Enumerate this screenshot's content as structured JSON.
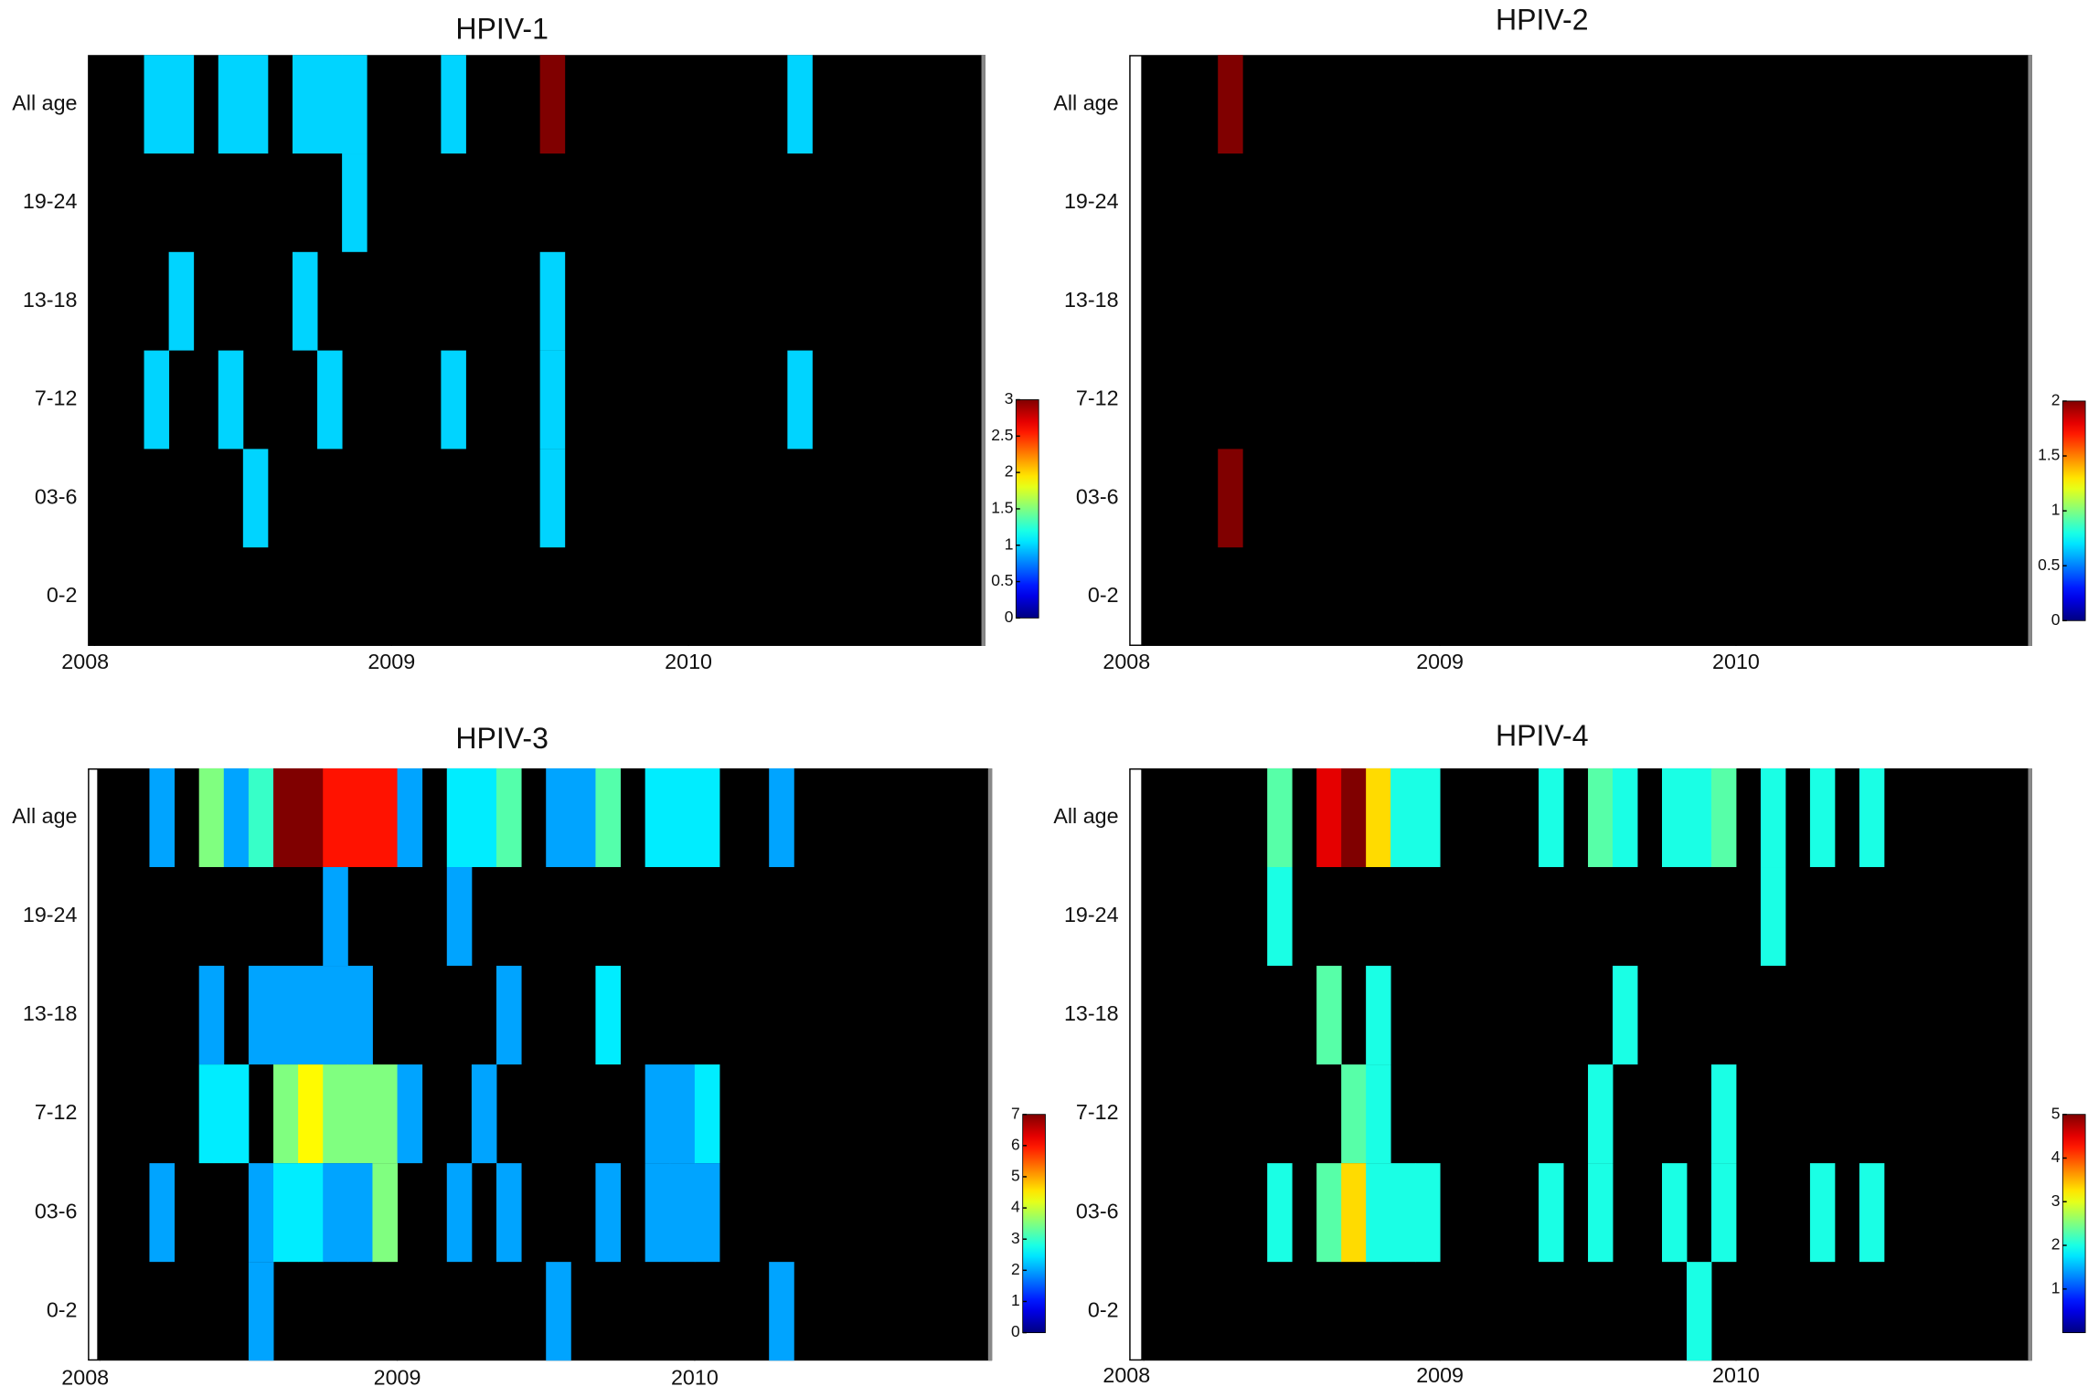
{
  "chart_data": [
    {
      "type": "heatmap",
      "title": "HPIV-1",
      "y_categories": [
        "All age",
        "19-24",
        "13-18",
        "7-12",
        "03-6",
        "0-2"
      ],
      "xlim": [
        2008,
        2011
      ],
      "xticks": [
        2008,
        2009,
        2010
      ],
      "colormap": "jet",
      "clim": [
        0,
        3
      ],
      "cticks": [
        0,
        0.5,
        1,
        1.5,
        2,
        2.5,
        3
      ],
      "z": [
        [
          null,
          null,
          1,
          1,
          null,
          1,
          1,
          null,
          1,
          1,
          1,
          null,
          null,
          null,
          1,
          null,
          null,
          null,
          3,
          null,
          null,
          null,
          null,
          null,
          null,
          null,
          null,
          null,
          1,
          null,
          null,
          null,
          null,
          null,
          null,
          null
        ],
        [
          null,
          null,
          null,
          null,
          null,
          null,
          null,
          null,
          null,
          null,
          1,
          null,
          null,
          null,
          null,
          null,
          null,
          null,
          null,
          null,
          null,
          null,
          null,
          null,
          null,
          null,
          null,
          null,
          null,
          null,
          null,
          null,
          null,
          null,
          null,
          null
        ],
        [
          null,
          null,
          null,
          1,
          null,
          null,
          null,
          null,
          1,
          null,
          null,
          null,
          null,
          null,
          null,
          null,
          null,
          null,
          1,
          null,
          null,
          null,
          null,
          null,
          null,
          null,
          null,
          null,
          null,
          null,
          null,
          null,
          null,
          null,
          null,
          null
        ],
        [
          null,
          null,
          1,
          null,
          null,
          1,
          null,
          null,
          null,
          1,
          null,
          null,
          null,
          null,
          1,
          null,
          null,
          null,
          1,
          null,
          null,
          null,
          null,
          null,
          null,
          null,
          null,
          null,
          1,
          null,
          null,
          null,
          null,
          null,
          null,
          null
        ],
        [
          null,
          null,
          null,
          null,
          null,
          null,
          1,
          null,
          null,
          null,
          null,
          null,
          null,
          null,
          null,
          null,
          null,
          null,
          1,
          null,
          null,
          null,
          null,
          null,
          null,
          null,
          null,
          null,
          null,
          null,
          null,
          null,
          null,
          null,
          null,
          null
        ],
        [
          null,
          null,
          null,
          null,
          null,
          null,
          null,
          null,
          null,
          null,
          null,
          null,
          null,
          null,
          null,
          null,
          null,
          null,
          null,
          null,
          null,
          null,
          null,
          null,
          null,
          null,
          null,
          null,
          null,
          null,
          null,
          null,
          null,
          null,
          null,
          null
        ]
      ]
    },
    {
      "type": "heatmap",
      "title": "HPIV-2",
      "y_categories": [
        "All age",
        "19-24",
        "13-18",
        "7-12",
        "03-6",
        "0-2"
      ],
      "xlim": [
        2008,
        2011
      ],
      "xticks": [
        2008,
        2009,
        2010
      ],
      "colormap": "jet",
      "clim": [
        0,
        2
      ],
      "cticks": [
        0,
        0.5,
        1,
        1.5,
        2
      ],
      "z": [
        [
          null,
          null,
          null,
          2,
          null,
          null,
          null,
          null,
          null,
          null,
          null,
          null,
          null,
          null,
          null,
          null,
          null,
          null,
          null,
          null,
          null,
          null,
          null,
          null,
          null,
          null,
          null,
          null,
          null,
          null,
          null,
          null,
          null,
          null,
          null,
          null
        ],
        [
          null,
          null,
          null,
          null,
          null,
          null,
          null,
          null,
          null,
          null,
          null,
          null,
          null,
          null,
          null,
          null,
          null,
          null,
          null,
          null,
          null,
          null,
          null,
          null,
          null,
          null,
          null,
          null,
          null,
          null,
          null,
          null,
          null,
          null,
          null,
          null
        ],
        [
          null,
          null,
          null,
          null,
          null,
          null,
          null,
          null,
          null,
          null,
          null,
          null,
          null,
          null,
          null,
          null,
          null,
          null,
          null,
          null,
          null,
          null,
          null,
          null,
          null,
          null,
          null,
          null,
          null,
          null,
          null,
          null,
          null,
          null,
          null,
          null
        ],
        [
          null,
          null,
          null,
          null,
          null,
          null,
          null,
          null,
          null,
          null,
          null,
          null,
          null,
          null,
          null,
          null,
          null,
          null,
          null,
          null,
          null,
          null,
          null,
          null,
          null,
          null,
          null,
          null,
          null,
          null,
          null,
          null,
          null,
          null,
          null,
          null
        ],
        [
          null,
          null,
          null,
          2,
          null,
          null,
          null,
          null,
          null,
          null,
          null,
          null,
          null,
          null,
          null,
          null,
          null,
          null,
          null,
          null,
          null,
          null,
          null,
          null,
          null,
          null,
          null,
          null,
          null,
          null,
          null,
          null,
          null,
          null,
          null,
          null
        ],
        [
          null,
          null,
          null,
          null,
          null,
          null,
          null,
          null,
          null,
          null,
          null,
          null,
          null,
          null,
          null,
          null,
          null,
          null,
          null,
          null,
          null,
          null,
          null,
          null,
          null,
          null,
          null,
          null,
          null,
          null,
          null,
          null,
          null,
          null,
          null,
          null
        ]
      ]
    },
    {
      "type": "heatmap",
      "title": "HPIV-3",
      "y_categories": [
        "All age",
        "19-24",
        "13-18",
        "7-12",
        "03-6",
        "0-2"
      ],
      "xlim": [
        2008,
        2011
      ],
      "xticks": [
        2008,
        2009,
        2010
      ],
      "colormap": "jet",
      "clim": [
        0,
        7
      ],
      "cticks": [
        0,
        1,
        2,
        3,
        4,
        5,
        6,
        7
      ],
      "z": [
        [
          null,
          null,
          2,
          null,
          3.5,
          2,
          3,
          7,
          7,
          6,
          6,
          6,
          2,
          null,
          2.5,
          2.5,
          3.2,
          null,
          2,
          2,
          3.2,
          null,
          2.5,
          2.5,
          2.5,
          null,
          null,
          2,
          null,
          null,
          null,
          null,
          null,
          null,
          null,
          null
        ],
        [
          null,
          null,
          null,
          null,
          null,
          null,
          null,
          null,
          null,
          2,
          null,
          null,
          null,
          null,
          2,
          null,
          null,
          null,
          null,
          null,
          null,
          null,
          null,
          null,
          null,
          null,
          null,
          null,
          null,
          null,
          null,
          null,
          null,
          null,
          null,
          null
        ],
        [
          null,
          null,
          null,
          null,
          2,
          null,
          2,
          2,
          2,
          2,
          2,
          null,
          null,
          null,
          null,
          null,
          2,
          null,
          null,
          null,
          2.5,
          null,
          null,
          null,
          null,
          null,
          null,
          null,
          null,
          null,
          null,
          null,
          null,
          null,
          null,
          null
        ],
        [
          null,
          null,
          null,
          null,
          2.5,
          2.5,
          null,
          3.5,
          4.4,
          3.5,
          3.5,
          3.5,
          2,
          null,
          null,
          2,
          null,
          null,
          null,
          null,
          null,
          null,
          2,
          2,
          2.5,
          null,
          null,
          null,
          null,
          null,
          null,
          null,
          null,
          null,
          null,
          null
        ],
        [
          null,
          null,
          2,
          null,
          null,
          null,
          2,
          2.5,
          2.5,
          2,
          2,
          3.5,
          null,
          null,
          2,
          null,
          2,
          null,
          null,
          null,
          2,
          null,
          2,
          2,
          2,
          null,
          null,
          null,
          null,
          null,
          null,
          null,
          null,
          null,
          null,
          null
        ],
        [
          null,
          null,
          null,
          null,
          null,
          null,
          2,
          null,
          null,
          null,
          null,
          null,
          null,
          null,
          null,
          null,
          null,
          null,
          2,
          null,
          null,
          null,
          null,
          null,
          null,
          null,
          null,
          2,
          null,
          null,
          null,
          null,
          null,
          null,
          null,
          null
        ]
      ]
    },
    {
      "type": "heatmap",
      "title": "HPIV-4",
      "y_categories": [
        "All age",
        "19-24",
        "13-18",
        "7-12",
        "03-6",
        "0-2"
      ],
      "xlim": [
        2008,
        2011
      ],
      "xticks": [
        2008,
        2009,
        2010
      ],
      "colormap": "jet",
      "clim": [
        0,
        5
      ],
      "cticks": [
        1,
        2,
        3,
        4,
        5
      ],
      "z": [
        [
          null,
          null,
          null,
          null,
          null,
          2.3,
          null,
          4.5,
          5,
          3.3,
          2,
          2,
          null,
          null,
          null,
          null,
          2,
          null,
          2.3,
          2,
          null,
          2,
          2,
          2.3,
          null,
          2,
          null,
          2,
          null,
          2,
          null,
          null,
          null,
          null,
          null,
          null
        ],
        [
          null,
          null,
          null,
          null,
          null,
          2,
          null,
          null,
          null,
          null,
          null,
          null,
          null,
          null,
          null,
          null,
          null,
          null,
          null,
          null,
          null,
          null,
          null,
          null,
          null,
          2,
          null,
          null,
          null,
          null,
          null,
          null,
          null,
          null,
          null,
          null
        ],
        [
          null,
          null,
          null,
          null,
          null,
          null,
          null,
          2.3,
          null,
          2,
          null,
          null,
          null,
          null,
          null,
          null,
          null,
          null,
          null,
          2,
          null,
          null,
          null,
          null,
          null,
          null,
          null,
          null,
          null,
          null,
          null,
          null,
          null,
          null,
          null,
          null
        ],
        [
          null,
          null,
          null,
          null,
          null,
          null,
          null,
          null,
          2.3,
          2,
          null,
          null,
          null,
          null,
          null,
          null,
          null,
          null,
          2,
          null,
          null,
          null,
          null,
          2,
          null,
          null,
          null,
          null,
          null,
          null,
          null,
          null,
          null,
          null,
          null,
          null
        ],
        [
          null,
          null,
          null,
          null,
          null,
          2,
          null,
          2.3,
          3.3,
          2,
          2,
          2,
          null,
          null,
          null,
          null,
          2,
          null,
          2,
          null,
          null,
          2,
          null,
          2,
          null,
          null,
          null,
          2,
          null,
          2,
          null,
          null,
          null,
          null,
          null,
          null
        ],
        [
          null,
          null,
          null,
          null,
          null,
          null,
          null,
          null,
          null,
          null,
          null,
          null,
          null,
          null,
          null,
          null,
          null,
          null,
          null,
          null,
          null,
          null,
          2,
          null,
          null,
          null,
          null,
          null,
          null,
          null,
          null,
          null,
          null,
          null,
          null,
          null
        ]
      ]
    }
  ]
}
